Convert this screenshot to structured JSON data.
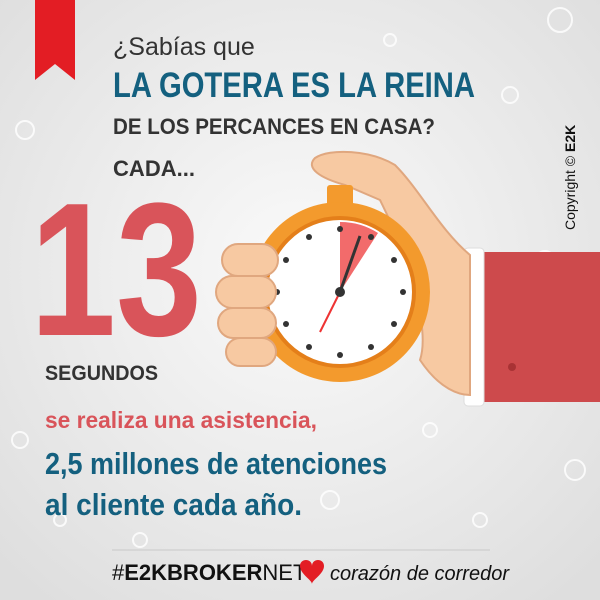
{
  "header": {
    "intro": "¿Sabías que",
    "headline": "LA GOTERA ES LA REINA",
    "subheadline": "DE LOS PERCANCES EN CASA?",
    "lead": "CADA..."
  },
  "stat": {
    "number": "13",
    "unit": "SEGUNDOS"
  },
  "body": {
    "line1": "se realiza una asistencia,",
    "line2": "2,5 millones de atenciones",
    "line3": "al cliente cada año."
  },
  "copyright": {
    "text": "Copyright ©",
    "brand": "E2K"
  },
  "footer": {
    "hash": "#",
    "brand": "E2K",
    "broker": "BROKER",
    "net": "NET",
    "tagline": "corazón de corredor"
  }
}
